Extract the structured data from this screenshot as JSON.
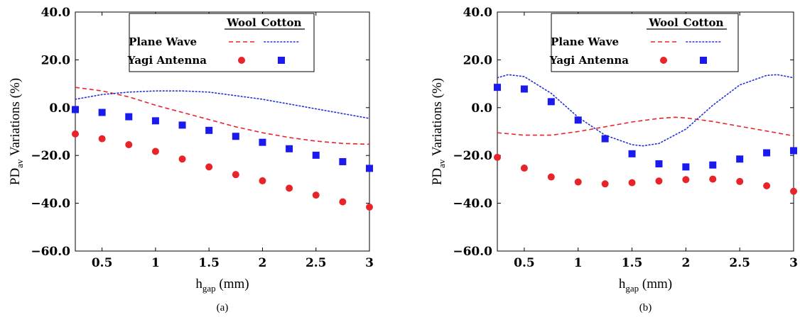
{
  "chart_data": [
    {
      "type": "line",
      "caption": "(a)",
      "xlabel": {
        "main": "h",
        "sub": "gap",
        "unit": " (mm)"
      },
      "ylabel": {
        "main": "PD",
        "sub": "av",
        "rest": "  Variations (%)"
      },
      "xlim": [
        0.25,
        3
      ],
      "ylim": [
        -60,
        40
      ],
      "xticks": [
        "0.5",
        "1",
        "1.5",
        "2",
        "2.5",
        "3"
      ],
      "yticks": [
        "40.0",
        "20.0",
        "0.0",
        "−20.0",
        "−40.0",
        "−60.0"
      ],
      "legend": {
        "placement": "top",
        "headers": [
          "Wool",
          "Cotton"
        ],
        "rows": [
          "Plane Wave",
          "Yagi Antenna"
        ]
      },
      "series": [
        {
          "name": "Plane Wave – Wool",
          "style": "dashed",
          "color": "#e8242a",
          "x": [
            0.25,
            0.5,
            0.75,
            1,
            1.25,
            1.5,
            1.75,
            2,
            2.25,
            2.5,
            2.75,
            3
          ],
          "y": [
            8.5,
            7.0,
            4.5,
            1.0,
            -2.0,
            -5.0,
            -8.0,
            -10.5,
            -12.5,
            -14.0,
            -15.0,
            -15.3
          ]
        },
        {
          "name": "Plane Wave – Cotton",
          "style": "dotted",
          "color": "#1f2fd6",
          "x": [
            0.25,
            0.5,
            0.75,
            1,
            1.25,
            1.5,
            1.75,
            2,
            2.25,
            2.5,
            2.75,
            3
          ],
          "y": [
            3.5,
            5.5,
            6.5,
            7.0,
            7.0,
            6.5,
            5.0,
            3.5,
            1.5,
            -0.5,
            -2.5,
            -4.5
          ]
        },
        {
          "name": "Yagi Antenna – Wool",
          "style": "circle",
          "color": "#e8242a",
          "x": [
            0.25,
            0.5,
            0.75,
            1,
            1.25,
            1.5,
            1.75,
            2,
            2.25,
            2.5,
            2.75,
            3
          ],
          "y": [
            -11,
            -13,
            -15.5,
            -18.3,
            -21.5,
            -24.8,
            -28,
            -30.6,
            -33.7,
            -36.6,
            -39.4,
            -41.6
          ]
        },
        {
          "name": "Yagi Antenna – Cotton",
          "style": "square",
          "color": "#1a1aee",
          "x": [
            0.25,
            0.5,
            0.75,
            1,
            1.25,
            1.5,
            1.75,
            2,
            2.25,
            2.5,
            2.75,
            3
          ],
          "y": [
            -0.8,
            -2,
            -3.8,
            -5.5,
            -7.3,
            -9.5,
            -12,
            -14.5,
            -17.2,
            -19.9,
            -22.6,
            -25.4
          ]
        }
      ]
    },
    {
      "type": "line",
      "caption": "(b)",
      "xlabel": {
        "main": "h",
        "sub": "gap",
        "unit": " (mm)"
      },
      "ylabel": {
        "main": "PD",
        "sub": "av",
        "rest": "  Variations (%)"
      },
      "xlim": [
        0.25,
        3
      ],
      "ylim": [
        -60,
        40
      ],
      "xticks": [
        "0.5",
        "1",
        "1.5",
        "2",
        "2.5",
        "3"
      ],
      "yticks": [
        "40.0",
        "20.0",
        "0.0",
        "−20.0",
        "−40.0",
        "−60.0"
      ],
      "legend": {
        "placement": "top",
        "headers": [
          "Wool",
          "Cotton"
        ],
        "rows": [
          "Plane Wave",
          "Yagi Antenna"
        ]
      },
      "series": [
        {
          "name": "Plane Wave – Wool",
          "style": "dashed",
          "color": "#e8242a",
          "x": [
            0.25,
            0.5,
            0.75,
            1,
            1.25,
            1.5,
            1.75,
            1.9,
            2,
            2.25,
            2.5,
            2.75,
            3
          ],
          "y": [
            -10.5,
            -11.5,
            -11.5,
            -10.0,
            -8.0,
            -6.0,
            -4.5,
            -4.0,
            -4.3,
            -5.8,
            -7.8,
            -9.8,
            -11.8
          ]
        },
        {
          "name": "Plane Wave – Cotton",
          "style": "dotted",
          "color": "#1f2fd6",
          "x": [
            0.25,
            0.35,
            0.5,
            0.75,
            1,
            1.25,
            1.5,
            1.6,
            1.75,
            2,
            2.25,
            2.5,
            2.75,
            2.85,
            3
          ],
          "y": [
            12.5,
            13.8,
            13.0,
            6.0,
            -4.0,
            -11.5,
            -15.5,
            -16.0,
            -15.0,
            -9.0,
            1.0,
            9.5,
            13.5,
            13.8,
            12.5
          ]
        },
        {
          "name": "Yagi Antenna – Wool",
          "style": "circle",
          "color": "#e8242a",
          "x": [
            0.25,
            0.5,
            0.75,
            1,
            1.25,
            1.5,
            1.75,
            2,
            2.25,
            2.5,
            2.75,
            3
          ],
          "y": [
            -20.8,
            -25.3,
            -29,
            -31.1,
            -31.9,
            -31.4,
            -30.7,
            -30.1,
            -29.9,
            -30.9,
            -32.7,
            -35
          ]
        },
        {
          "name": "Yagi Antenna – Cotton",
          "style": "square",
          "color": "#1a1aee",
          "x": [
            0.25,
            0.5,
            0.75,
            1,
            1.25,
            1.5,
            1.75,
            2,
            2.25,
            2.5,
            2.75,
            3
          ],
          "y": [
            8.5,
            7.8,
            2.5,
            -5.2,
            -13,
            -19.3,
            -23.5,
            -24.8,
            -24,
            -21.5,
            -18.9,
            -18
          ]
        }
      ]
    }
  ]
}
